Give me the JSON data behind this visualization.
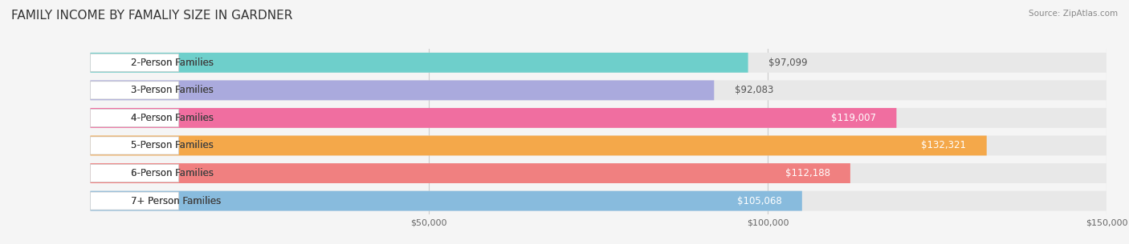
{
  "title": "FAMILY INCOME BY FAMALIY SIZE IN GARDNER",
  "source": "Source: ZipAtlas.com",
  "categories": [
    "2-Person Families",
    "3-Person Families",
    "4-Person Families",
    "5-Person Families",
    "6-Person Families",
    "7+ Person Families"
  ],
  "values": [
    97099,
    92083,
    119007,
    132321,
    112188,
    105068
  ],
  "bar_colors": [
    "#6ECFCB",
    "#AAAADD",
    "#F06EA0",
    "#F4A84A",
    "#F08080",
    "#88BBDD"
  ],
  "label_colors": [
    "#555555",
    "#555555",
    "#ffffff",
    "#ffffff",
    "#ffffff",
    "#555555"
  ],
  "background_color": "#f5f5f5",
  "bar_bg_color": "#e8e8e8",
  "xlim": [
    0,
    150000
  ],
  "xticks": [
    0,
    50000,
    100000,
    150000
  ],
  "xtick_labels": [
    "$50,000",
    "$100,000",
    "$150,000"
  ],
  "title_fontsize": 11,
  "label_fontsize": 8.5,
  "value_fontsize": 8.5,
  "figsize": [
    14.06,
    3.05
  ],
  "dpi": 100
}
